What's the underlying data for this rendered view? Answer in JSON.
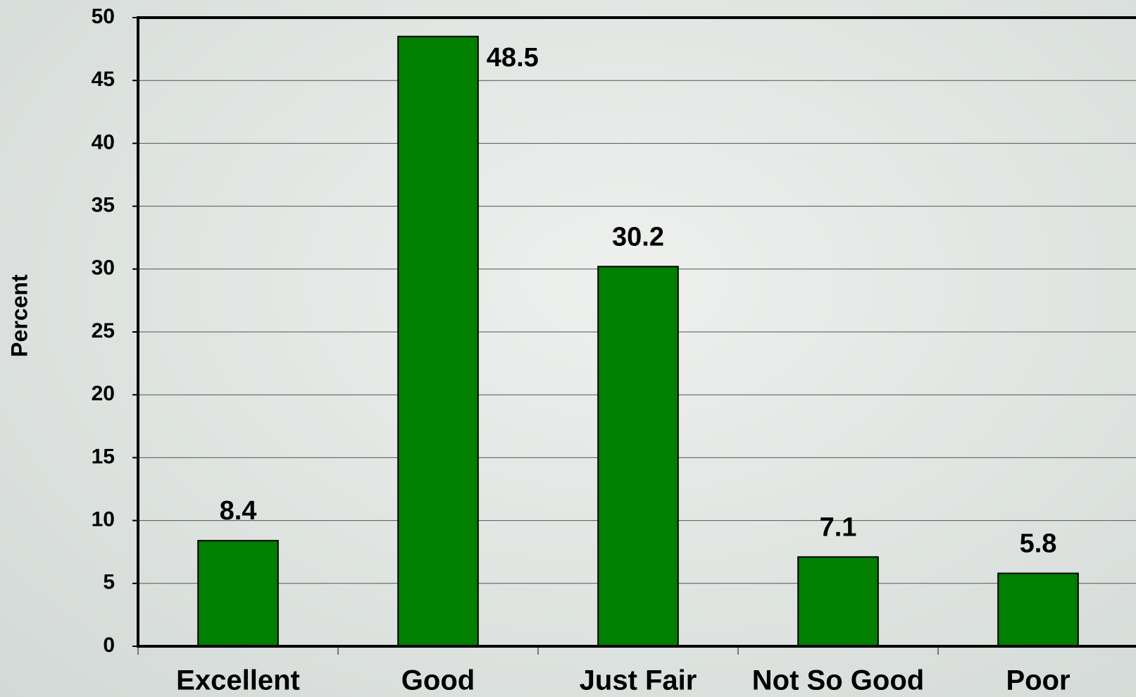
{
  "chart_data": {
    "type": "bar",
    "y_label": "Percent",
    "categories": [
      "Excellent",
      "Good",
      "Just Fair",
      "Not So Good",
      "Poor"
    ],
    "values": [
      8.4,
      48.5,
      30.2,
      7.1,
      5.8
    ],
    "color": "#007f00",
    "ylim": [
      0,
      50
    ],
    "yticks": [
      0,
      5,
      10,
      15,
      20,
      25,
      30,
      35,
      40,
      45,
      50
    ],
    "grid": true
  }
}
